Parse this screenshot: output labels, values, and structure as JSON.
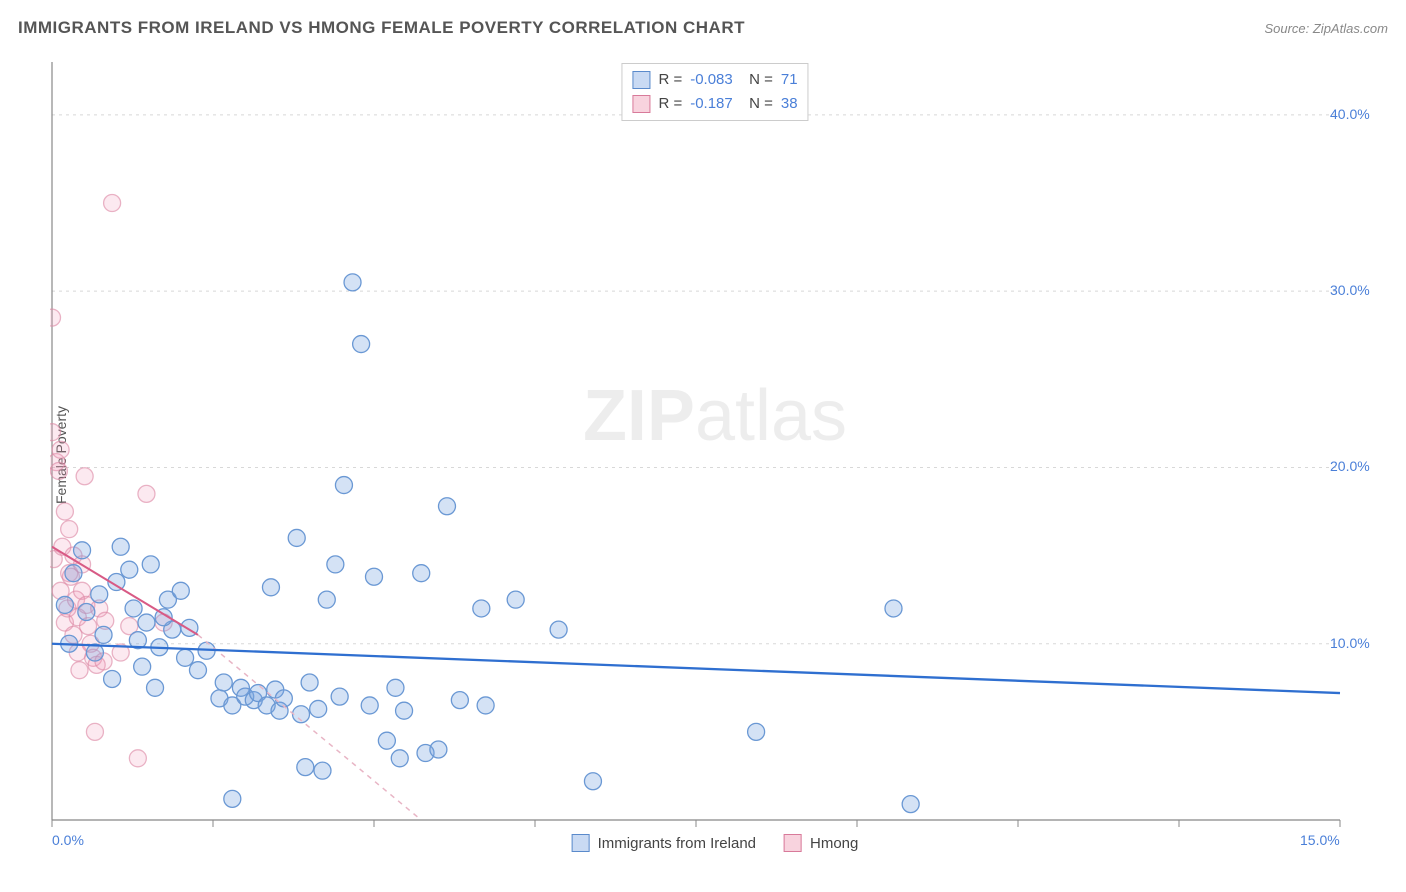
{
  "title": "IMMIGRANTS FROM IRELAND VS HMONG FEMALE POVERTY CORRELATION CHART",
  "source_label": "Source: ",
  "source_name": "ZipAtlas.com",
  "watermark_zip": "ZIP",
  "watermark_atlas": "atlas",
  "y_axis_label": "Female Poverty",
  "chart": {
    "type": "scatter",
    "background_color": "#ffffff",
    "grid_color": "#d8d8d8",
    "axis_color": "#888888",
    "xlim": [
      0,
      15
    ],
    "ylim": [
      0,
      43
    ],
    "x_ticks": [
      0,
      1.875,
      3.75,
      5.625,
      7.5,
      9.375,
      11.25,
      13.125,
      15
    ],
    "x_tick_labels": {
      "0": "0.0%",
      "15": "15.0%"
    },
    "y_gridlines": [
      10,
      20,
      30,
      40
    ],
    "y_tick_labels": {
      "10": "10.0%",
      "20": "20.0%",
      "30": "30.0%",
      "40": "40.0%"
    },
    "y_label_fontsize": 14,
    "tick_fontsize": 14,
    "tick_color": "#4a7fd8",
    "marker_radius": 8.5,
    "marker_stroke_width": 1.3,
    "series": {
      "ireland": {
        "label": "Immigrants from Ireland",
        "fill": "rgba(120,165,225,0.32)",
        "stroke": "#6a98d4",
        "R": "-0.083",
        "N": "71",
        "trendline": {
          "x1": 0.0,
          "y1": 10.0,
          "x2": 15.0,
          "y2": 7.2,
          "color": "#2f6fd0",
          "width": 2.3
        },
        "points": [
          [
            0.15,
            12.2
          ],
          [
            0.2,
            10.0
          ],
          [
            0.25,
            14.0
          ],
          [
            0.35,
            15.3
          ],
          [
            0.4,
            11.8
          ],
          [
            0.5,
            9.5
          ],
          [
            0.55,
            12.8
          ],
          [
            0.6,
            10.5
          ],
          [
            0.7,
            8.0
          ],
          [
            0.75,
            13.5
          ],
          [
            0.8,
            15.5
          ],
          [
            0.9,
            14.2
          ],
          [
            1.0,
            10.2
          ],
          [
            1.05,
            8.7
          ],
          [
            1.1,
            11.2
          ],
          [
            1.2,
            7.5
          ],
          [
            1.25,
            9.8
          ],
          [
            1.35,
            12.5
          ],
          [
            1.4,
            10.8
          ],
          [
            1.5,
            13.0
          ],
          [
            1.55,
            9.2
          ],
          [
            1.6,
            10.9
          ],
          [
            1.7,
            8.5
          ],
          [
            1.8,
            9.6
          ],
          [
            1.95,
            6.9
          ],
          [
            2.0,
            7.8
          ],
          [
            2.1,
            6.5
          ],
          [
            2.2,
            7.5
          ],
          [
            2.25,
            7.0
          ],
          [
            2.35,
            6.8
          ],
          [
            2.4,
            7.2
          ],
          [
            2.5,
            6.5
          ],
          [
            2.6,
            7.4
          ],
          [
            2.65,
            6.2
          ],
          [
            2.7,
            6.9
          ],
          [
            2.85,
            16.0
          ],
          [
            2.9,
            6.0
          ],
          [
            2.95,
            3.0
          ],
          [
            3.0,
            7.8
          ],
          [
            3.1,
            6.3
          ],
          [
            3.2,
            12.5
          ],
          [
            3.3,
            14.5
          ],
          [
            3.35,
            7.0
          ],
          [
            3.4,
            19.0
          ],
          [
            3.5,
            30.5
          ],
          [
            3.6,
            27.0
          ],
          [
            3.7,
            6.5
          ],
          [
            3.75,
            13.8
          ],
          [
            3.9,
            4.5
          ],
          [
            4.0,
            7.5
          ],
          [
            4.05,
            3.5
          ],
          [
            4.1,
            6.2
          ],
          [
            4.3,
            14.0
          ],
          [
            4.35,
            3.8
          ],
          [
            4.5,
            4.0
          ],
          [
            4.6,
            17.8
          ],
          [
            4.75,
            6.8
          ],
          [
            5.0,
            12.0
          ],
          [
            5.05,
            6.5
          ],
          [
            5.9,
            10.8
          ],
          [
            5.4,
            12.5
          ],
          [
            6.3,
            2.2
          ],
          [
            8.2,
            5.0
          ],
          [
            9.8,
            12.0
          ],
          [
            10.0,
            0.9
          ],
          [
            2.1,
            1.2
          ],
          [
            0.95,
            12.0
          ],
          [
            1.15,
            14.5
          ],
          [
            1.3,
            11.5
          ],
          [
            2.55,
            13.2
          ],
          [
            3.15,
            2.8
          ]
        ]
      },
      "hmong": {
        "label": "Hmong",
        "fill": "rgba(240,150,180,0.32)",
        "stroke": "#de88a5",
        "R": "-0.187",
        "N": "38",
        "trendline_solid": {
          "x1": 0.0,
          "y1": 15.5,
          "x2": 1.7,
          "y2": 10.5,
          "color": "#d85a85",
          "width": 2.0
        },
        "trendline_dashed": {
          "x1": 1.7,
          "y1": 10.5,
          "x2": 4.3,
          "y2": 0.0,
          "color": "#e8b5c5",
          "width": 1.5
        },
        "points": [
          [
            0.0,
            22.0
          ],
          [
            0.0,
            28.5
          ],
          [
            0.02,
            14.8
          ],
          [
            0.05,
            20.3
          ],
          [
            0.08,
            19.8
          ],
          [
            0.1,
            21.0
          ],
          [
            0.1,
            13.0
          ],
          [
            0.12,
            15.5
          ],
          [
            0.15,
            17.5
          ],
          [
            0.15,
            11.2
          ],
          [
            0.18,
            12.0
          ],
          [
            0.2,
            14.0
          ],
          [
            0.2,
            16.5
          ],
          [
            0.22,
            13.8
          ],
          [
            0.25,
            10.5
          ],
          [
            0.25,
            15.0
          ],
          [
            0.28,
            12.5
          ],
          [
            0.3,
            11.5
          ],
          [
            0.3,
            9.5
          ],
          [
            0.32,
            8.5
          ],
          [
            0.35,
            14.5
          ],
          [
            0.35,
            13.0
          ],
          [
            0.38,
            19.5
          ],
          [
            0.4,
            12.2
          ],
          [
            0.42,
            11.0
          ],
          [
            0.45,
            10.0
          ],
          [
            0.48,
            9.2
          ],
          [
            0.5,
            5.0
          ],
          [
            0.52,
            8.8
          ],
          [
            0.55,
            12.0
          ],
          [
            0.6,
            9.0
          ],
          [
            0.62,
            11.3
          ],
          [
            0.7,
            35.0
          ],
          [
            0.8,
            9.5
          ],
          [
            0.9,
            11.0
          ],
          [
            1.0,
            3.5
          ],
          [
            1.1,
            18.5
          ],
          [
            1.3,
            11.2
          ]
        ]
      }
    }
  },
  "stats_legend": [
    {
      "swatch": "blue",
      "R": "-0.083",
      "N": "71"
    },
    {
      "swatch": "pink",
      "R": "-0.187",
      "N": "38"
    }
  ],
  "bottom_legend": [
    {
      "swatch": "blue",
      "label": "Immigrants from Ireland"
    },
    {
      "swatch": "pink",
      "label": "Hmong"
    }
  ]
}
